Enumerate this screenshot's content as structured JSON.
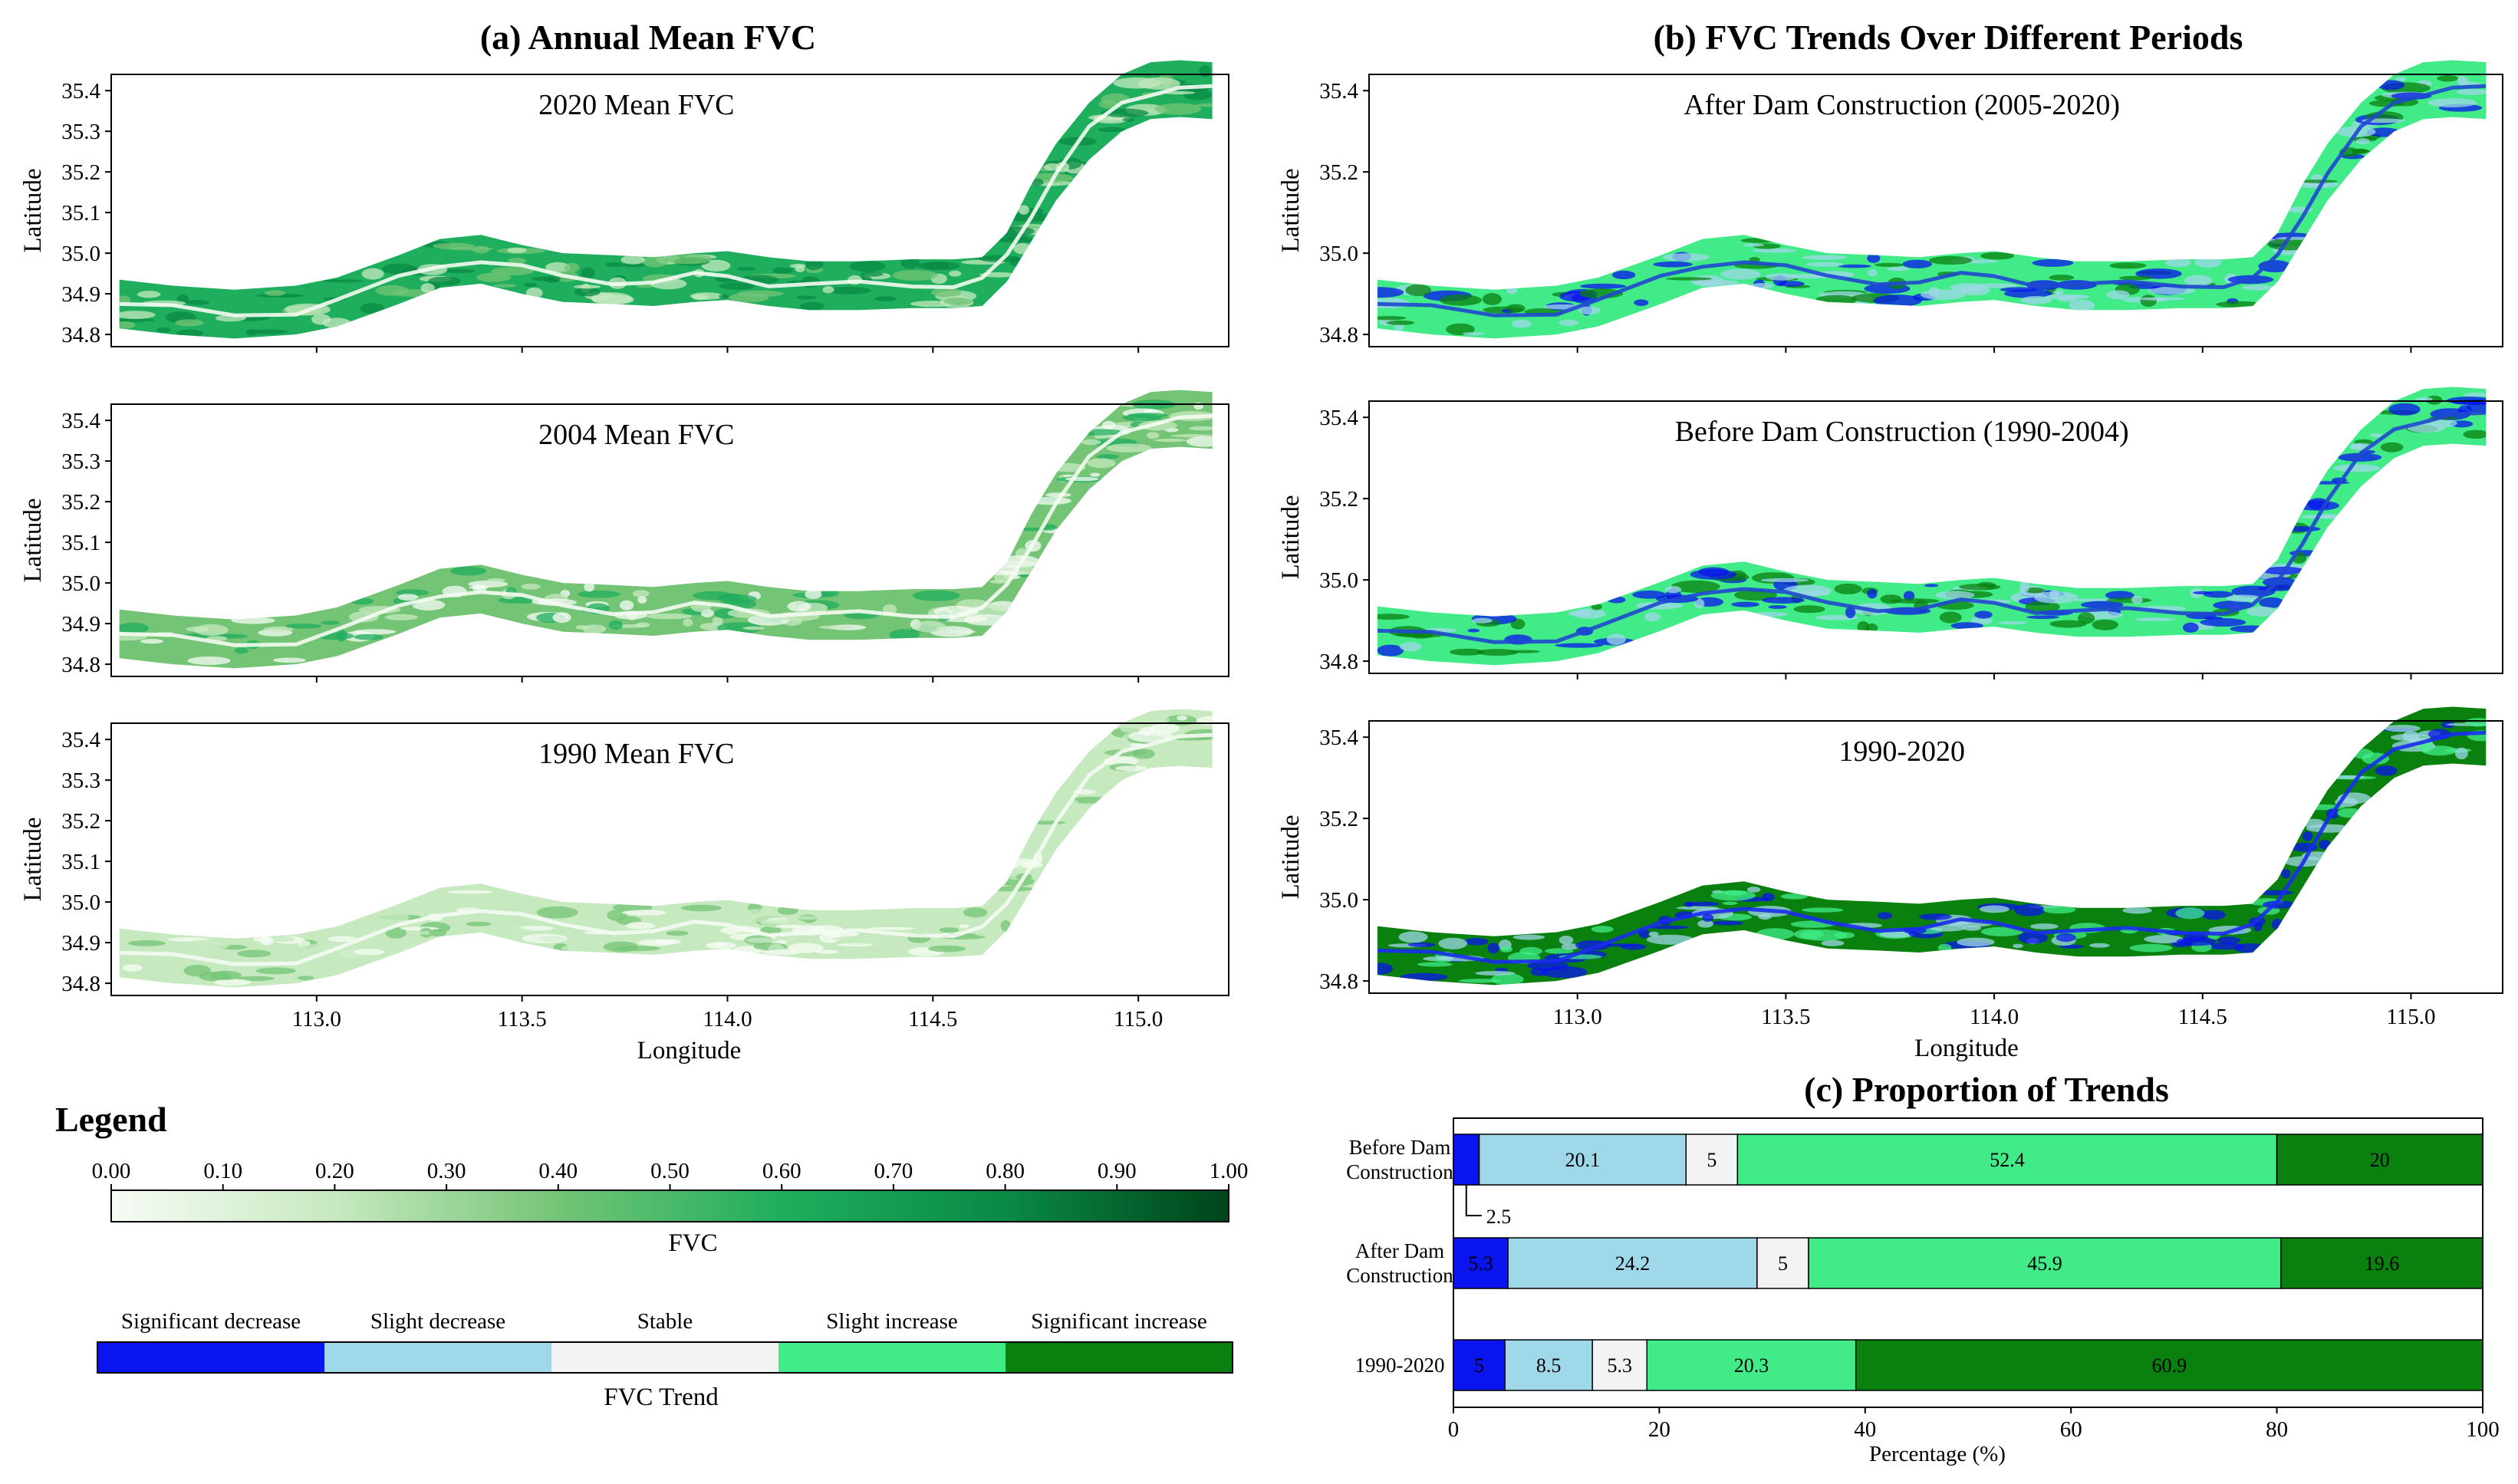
{
  "panel_a": {
    "title": "(a)  Annual Mean FVC",
    "maps": [
      {
        "label": "2020 Mean FVC"
      },
      {
        "label": "2004 Mean FVC"
      },
      {
        "label": "1990 Mean FVC"
      }
    ]
  },
  "panel_b": {
    "title": "(b)  FVC Trends Over Different Periods",
    "maps": [
      {
        "label": "After Dam Construction (2005-2020)"
      },
      {
        "label": "Before Dam Construction (1990-2004)"
      },
      {
        "label": "1990-2020"
      }
    ]
  },
  "axes": {
    "ylabel": "Latitude",
    "xlabel": "Longitude",
    "map_xlim": [
      112.5,
      115.22
    ],
    "x_ticks": [
      "113.0",
      "113.5",
      "114.0",
      "114.5",
      "115.0"
    ],
    "y_ticks_a": [
      "35.4",
      "35.3",
      "35.2",
      "35.1",
      "35.0",
      "34.9",
      "34.8"
    ],
    "y_ticks_b": [
      "35.4",
      "35.2",
      "35.0",
      "34.8"
    ]
  },
  "legend": {
    "title": "Legend",
    "fvc_ticks": [
      "0.00",
      "0.10",
      "0.20",
      "0.30",
      "0.40",
      "0.50",
      "0.60",
      "0.70",
      "0.80",
      "0.90",
      "1.00"
    ],
    "fvc_label": "FVC",
    "trend_label": "FVC Trend",
    "trend_classes": [
      {
        "name": "Significant decrease",
        "color": "#0a14ee"
      },
      {
        "name": "Slight decrease",
        "color": "#9fd8e8"
      },
      {
        "name": "Stable",
        "color": "#f3f3f3"
      },
      {
        "name": "Slight increase",
        "color": "#41ec88"
      },
      {
        "name": "Significant increase",
        "color": "#0a800e"
      }
    ],
    "fvc_colors": [
      "#f7fcf5",
      "#c7e9c0",
      "#74c476",
      "#1fae5e",
      "#0a8a45",
      "#00441b"
    ]
  },
  "chart_data": {
    "type": "bar",
    "stacked": true,
    "orientation": "horizontal",
    "title": "(c)  Proportion of  Trends",
    "xlabel": "Percentage (%)",
    "xlim": [
      0,
      100
    ],
    "x_ticks": [
      "0",
      "20",
      "40",
      "60",
      "80",
      "100"
    ],
    "categories": [
      "Before Dam Construction",
      "After Dam Construction",
      "1990-2020"
    ],
    "category_lines": [
      [
        "Before Dam",
        "Construction"
      ],
      [
        "After Dam",
        "Construction"
      ],
      [
        "1990-2020"
      ]
    ],
    "series": [
      {
        "name": "Significant decrease",
        "values": [
          2.5,
          5.3,
          5
        ]
      },
      {
        "name": "Slight decrease",
        "values": [
          20.1,
          24.2,
          8.5
        ]
      },
      {
        "name": "Stable",
        "values": [
          5,
          5,
          5.3
        ]
      },
      {
        "name": "Slight increase",
        "values": [
          52.4,
          45.9,
          20.3
        ]
      },
      {
        "name": "Significant increase",
        "values": [
          20,
          19.6,
          60.9
        ]
      }
    ],
    "annotation": "2.5"
  }
}
